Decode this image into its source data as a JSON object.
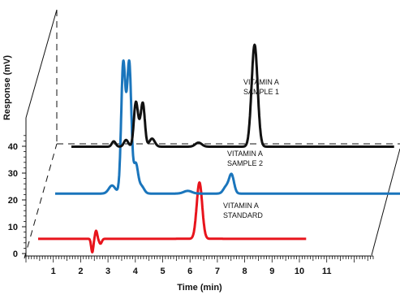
{
  "chart_data": {
    "type": "line",
    "xlabel": "Time (min)",
    "ylabel": "Response (mV)",
    "x_ticks": [
      "1",
      "2",
      "3",
      "4",
      "5",
      "6",
      "7",
      "8",
      "9",
      "10",
      "11"
    ],
    "y_ticks": [
      "0",
      "10",
      "20",
      "30",
      "40"
    ],
    "xlim": [
      0,
      12
    ],
    "ylim": [
      0,
      45
    ],
    "grid": false,
    "legend": "none",
    "series": [
      {
        "name": "VITAMIN A STANDARD",
        "color": "#e8141c",
        "label_lines": [
          "VITAMIN A",
          "STANDARD"
        ],
        "baseline": 5.5,
        "x_range": [
          0,
          9.8
        ],
        "peaks": [
          {
            "x": 5.9,
            "h": 21,
            "w": 0.1
          },
          {
            "x": 2.12,
            "h": 3.0,
            "w": 0.04
          },
          {
            "x": 1.98,
            "h": -5.0,
            "w": 0.04
          },
          {
            "x": 2.28,
            "h": -1.8,
            "w": 0.05
          }
        ]
      },
      {
        "name": "VITAMIN A SAMPLE 2",
        "color": "#1a75bc",
        "label_lines": [
          "VITAMIN A",
          "SAMPLE 2"
        ],
        "baseline": 5.7,
        "x_range": [
          0,
          12.7
        ],
        "peaks": [
          {
            "x": 2.08,
            "h": 3.0,
            "w": 0.12
          },
          {
            "x": 2.48,
            "h": 37.5,
            "w": 0.07
          },
          {
            "x": 2.72,
            "h": 33,
            "w": 0.07
          },
          {
            "x": 2.62,
            "h": 22,
            "w": 0.12
          },
          {
            "x": 2.95,
            "h": 10.5,
            "w": 0.08
          },
          {
            "x": 3.15,
            "h": 2.8,
            "w": 0.1
          },
          {
            "x": 4.85,
            "h": 1.0,
            "w": 0.15
          },
          {
            "x": 6.45,
            "h": 7.0,
            "w": 0.09
          },
          {
            "x": 6.25,
            "h": 2.5,
            "w": 0.1
          }
        ]
      },
      {
        "name": "VITAMIN A SAMPLE 1",
        "color": "#111111",
        "label_lines": [
          "VITAMIN A",
          "SAMPLE 1"
        ],
        "baseline": 5.0,
        "x_range": [
          0,
          11.8
        ],
        "peaks": [
          {
            "x": 1.55,
            "h": 2.0,
            "w": 0.07
          },
          {
            "x": 2.0,
            "h": 2.5,
            "w": 0.08
          },
          {
            "x": 2.35,
            "h": 14,
            "w": 0.07
          },
          {
            "x": 2.62,
            "h": 14,
            "w": 0.07
          },
          {
            "x": 2.48,
            "h": 6,
            "w": 0.1
          },
          {
            "x": 2.95,
            "h": 3.0,
            "w": 0.1
          },
          {
            "x": 4.65,
            "h": 1.5,
            "w": 0.12
          },
          {
            "x": 6.7,
            "h": 38,
            "w": 0.11
          }
        ]
      }
    ]
  }
}
